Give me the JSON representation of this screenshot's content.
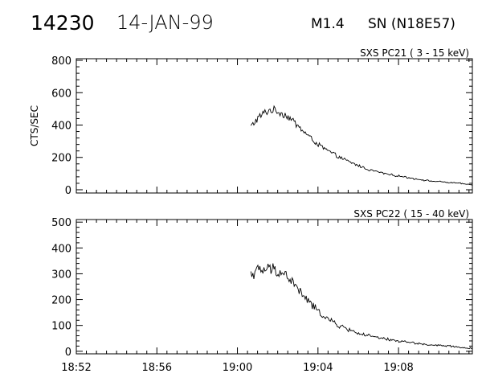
{
  "header": {
    "event_id": "14230",
    "date": "14-JAN-99",
    "flare_class": "M1.4",
    "location": "SN (N18E57)"
  },
  "x_ticks": [
    "18:52",
    "18:56",
    "19:00",
    "19:04",
    "19:08"
  ],
  "chart_data": [
    {
      "type": "line",
      "title": "SXS PC21  (  3 - 15 keV)",
      "ylabel": "CTS/SEC",
      "xlim": [
        "18:52",
        "19:11:40"
      ],
      "ylim": [
        -20,
        810
      ],
      "yticks": [
        0,
        200,
        400,
        600,
        800
      ],
      "series": [
        {
          "x": [
            "19:00:40",
            "19:01:00",
            "19:01:20",
            "19:01:40",
            "19:02:00",
            "19:02:30",
            "19:03:00",
            "19:03:30",
            "19:04:00",
            "19:04:30",
            "19:05:00",
            "19:05:30",
            "19:06:00",
            "19:06:30",
            "19:07:00",
            "19:07:30",
            "19:08:00",
            "19:08:30",
            "19:09:00",
            "19:09:30",
            "19:10:00",
            "19:10:30",
            "19:11:00",
            "19:11:40"
          ],
          "y": [
            390,
            440,
            475,
            495,
            485,
            455,
            395,
            335,
            280,
            240,
            205,
            175,
            150,
            125,
            110,
            95,
            85,
            75,
            65,
            55,
            50,
            45,
            40,
            30
          ]
        }
      ]
    },
    {
      "type": "line",
      "title": "SXS PC22  ( 15 - 40 keV)",
      "ylabel": "",
      "xlim": [
        "18:52",
        "19:11:40"
      ],
      "ylim": [
        -10,
        510
      ],
      "yticks": [
        0,
        100,
        200,
        300,
        400,
        500
      ],
      "series": [
        {
          "x": [
            "19:00:40",
            "19:01:00",
            "19:01:20",
            "19:01:40",
            "19:02:00",
            "19:02:30",
            "19:03:00",
            "19:03:30",
            "19:04:00",
            "19:04:30",
            "19:05:00",
            "19:05:30",
            "19:06:00",
            "19:06:30",
            "19:07:00",
            "19:07:30",
            "19:08:00",
            "19:08:30",
            "19:09:00",
            "19:09:30",
            "19:10:00",
            "19:10:30",
            "19:11:00",
            "19:11:40"
          ],
          "y": [
            300,
            310,
            315,
            318,
            312,
            290,
            240,
            195,
            155,
            125,
            100,
            85,
            70,
            60,
            52,
            45,
            40,
            35,
            30,
            25,
            22,
            20,
            15,
            10
          ]
        }
      ]
    }
  ]
}
